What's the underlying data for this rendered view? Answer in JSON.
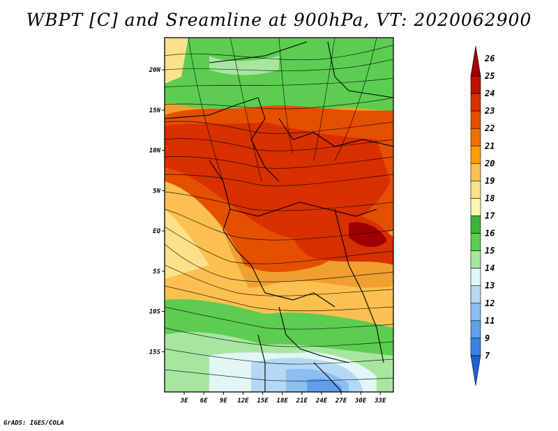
{
  "title": "WBPT [C] and Sreamline at 900hPa, VT: 2020062900",
  "footer": "GrADS: IGES/COLA",
  "map": {
    "lon_range": [
      0,
      35
    ],
    "lat_range": [
      -20,
      24
    ],
    "lat_ticks": [
      {
        "value": 20,
        "label": "20N"
      },
      {
        "value": 15,
        "label": "15N"
      },
      {
        "value": 10,
        "label": "10N"
      },
      {
        "value": 5,
        "label": "5N"
      },
      {
        "value": 0,
        "label": "EQ"
      },
      {
        "value": -5,
        "label": "5S"
      },
      {
        "value": -10,
        "label": "10S"
      },
      {
        "value": -15,
        "label": "15S"
      }
    ],
    "lon_ticks": [
      {
        "value": 3,
        "label": "3E"
      },
      {
        "value": 6,
        "label": "6E"
      },
      {
        "value": 9,
        "label": "9E"
      },
      {
        "value": 12,
        "label": "12E"
      },
      {
        "value": 15,
        "label": "15E"
      },
      {
        "value": 18,
        "label": "18E"
      },
      {
        "value": 21,
        "label": "21E"
      },
      {
        "value": 24,
        "label": "24E"
      },
      {
        "value": 27,
        "label": "27E"
      },
      {
        "value": 30,
        "label": "30E"
      },
      {
        "value": 33,
        "label": "33E"
      }
    ]
  },
  "colorbar": {
    "levels": [
      "26",
      "25",
      "24",
      "23",
      "22",
      "21",
      "20",
      "19",
      "18",
      "17",
      "16",
      "15",
      "14",
      "13",
      "12",
      "11",
      "9",
      "7"
    ],
    "colors": [
      "#a00000",
      "#c01000",
      "#d83000",
      "#e55000",
      "#ee7000",
      "#f7a000",
      "#fbc050",
      "#fde08a",
      "#fcf5b0",
      "#3cb43c",
      "#5ccd50",
      "#a8e6a0",
      "#e2f6f6",
      "#b4d8f5",
      "#8cbef0",
      "#60a0ea",
      "#3c82e0",
      "#2060d0"
    ]
  }
}
